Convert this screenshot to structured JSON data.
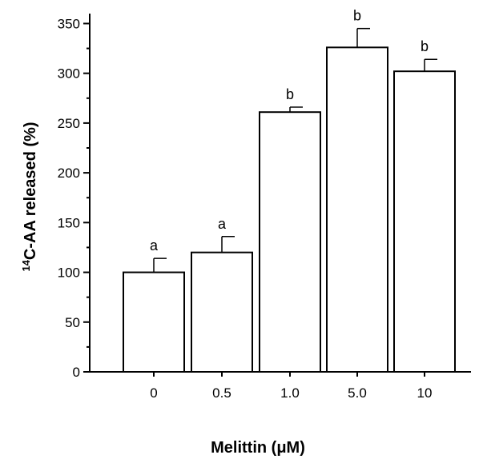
{
  "chart_data": {
    "type": "bar",
    "xlabel": "Melittin (μM)",
    "ylabel": {
      "superscript": "14",
      "text": "C-AA released (%)"
    },
    "categories": [
      "0",
      "0.5",
      "1.0",
      "5.0",
      "10"
    ],
    "values": [
      100,
      120,
      261,
      326,
      302
    ],
    "error": [
      14,
      16,
      5,
      19,
      12
    ],
    "significance": [
      "a",
      "a",
      "b",
      "b",
      "b"
    ],
    "ylim": [
      0,
      360
    ],
    "yticks": [
      0,
      50,
      100,
      150,
      200,
      250,
      300,
      350
    ],
    "y_minor_step": 25,
    "grid": false,
    "legend": "none",
    "colors": {
      "bar_fill": "#ffffff",
      "bar_stroke": "#000000",
      "axis": "#000000"
    }
  }
}
